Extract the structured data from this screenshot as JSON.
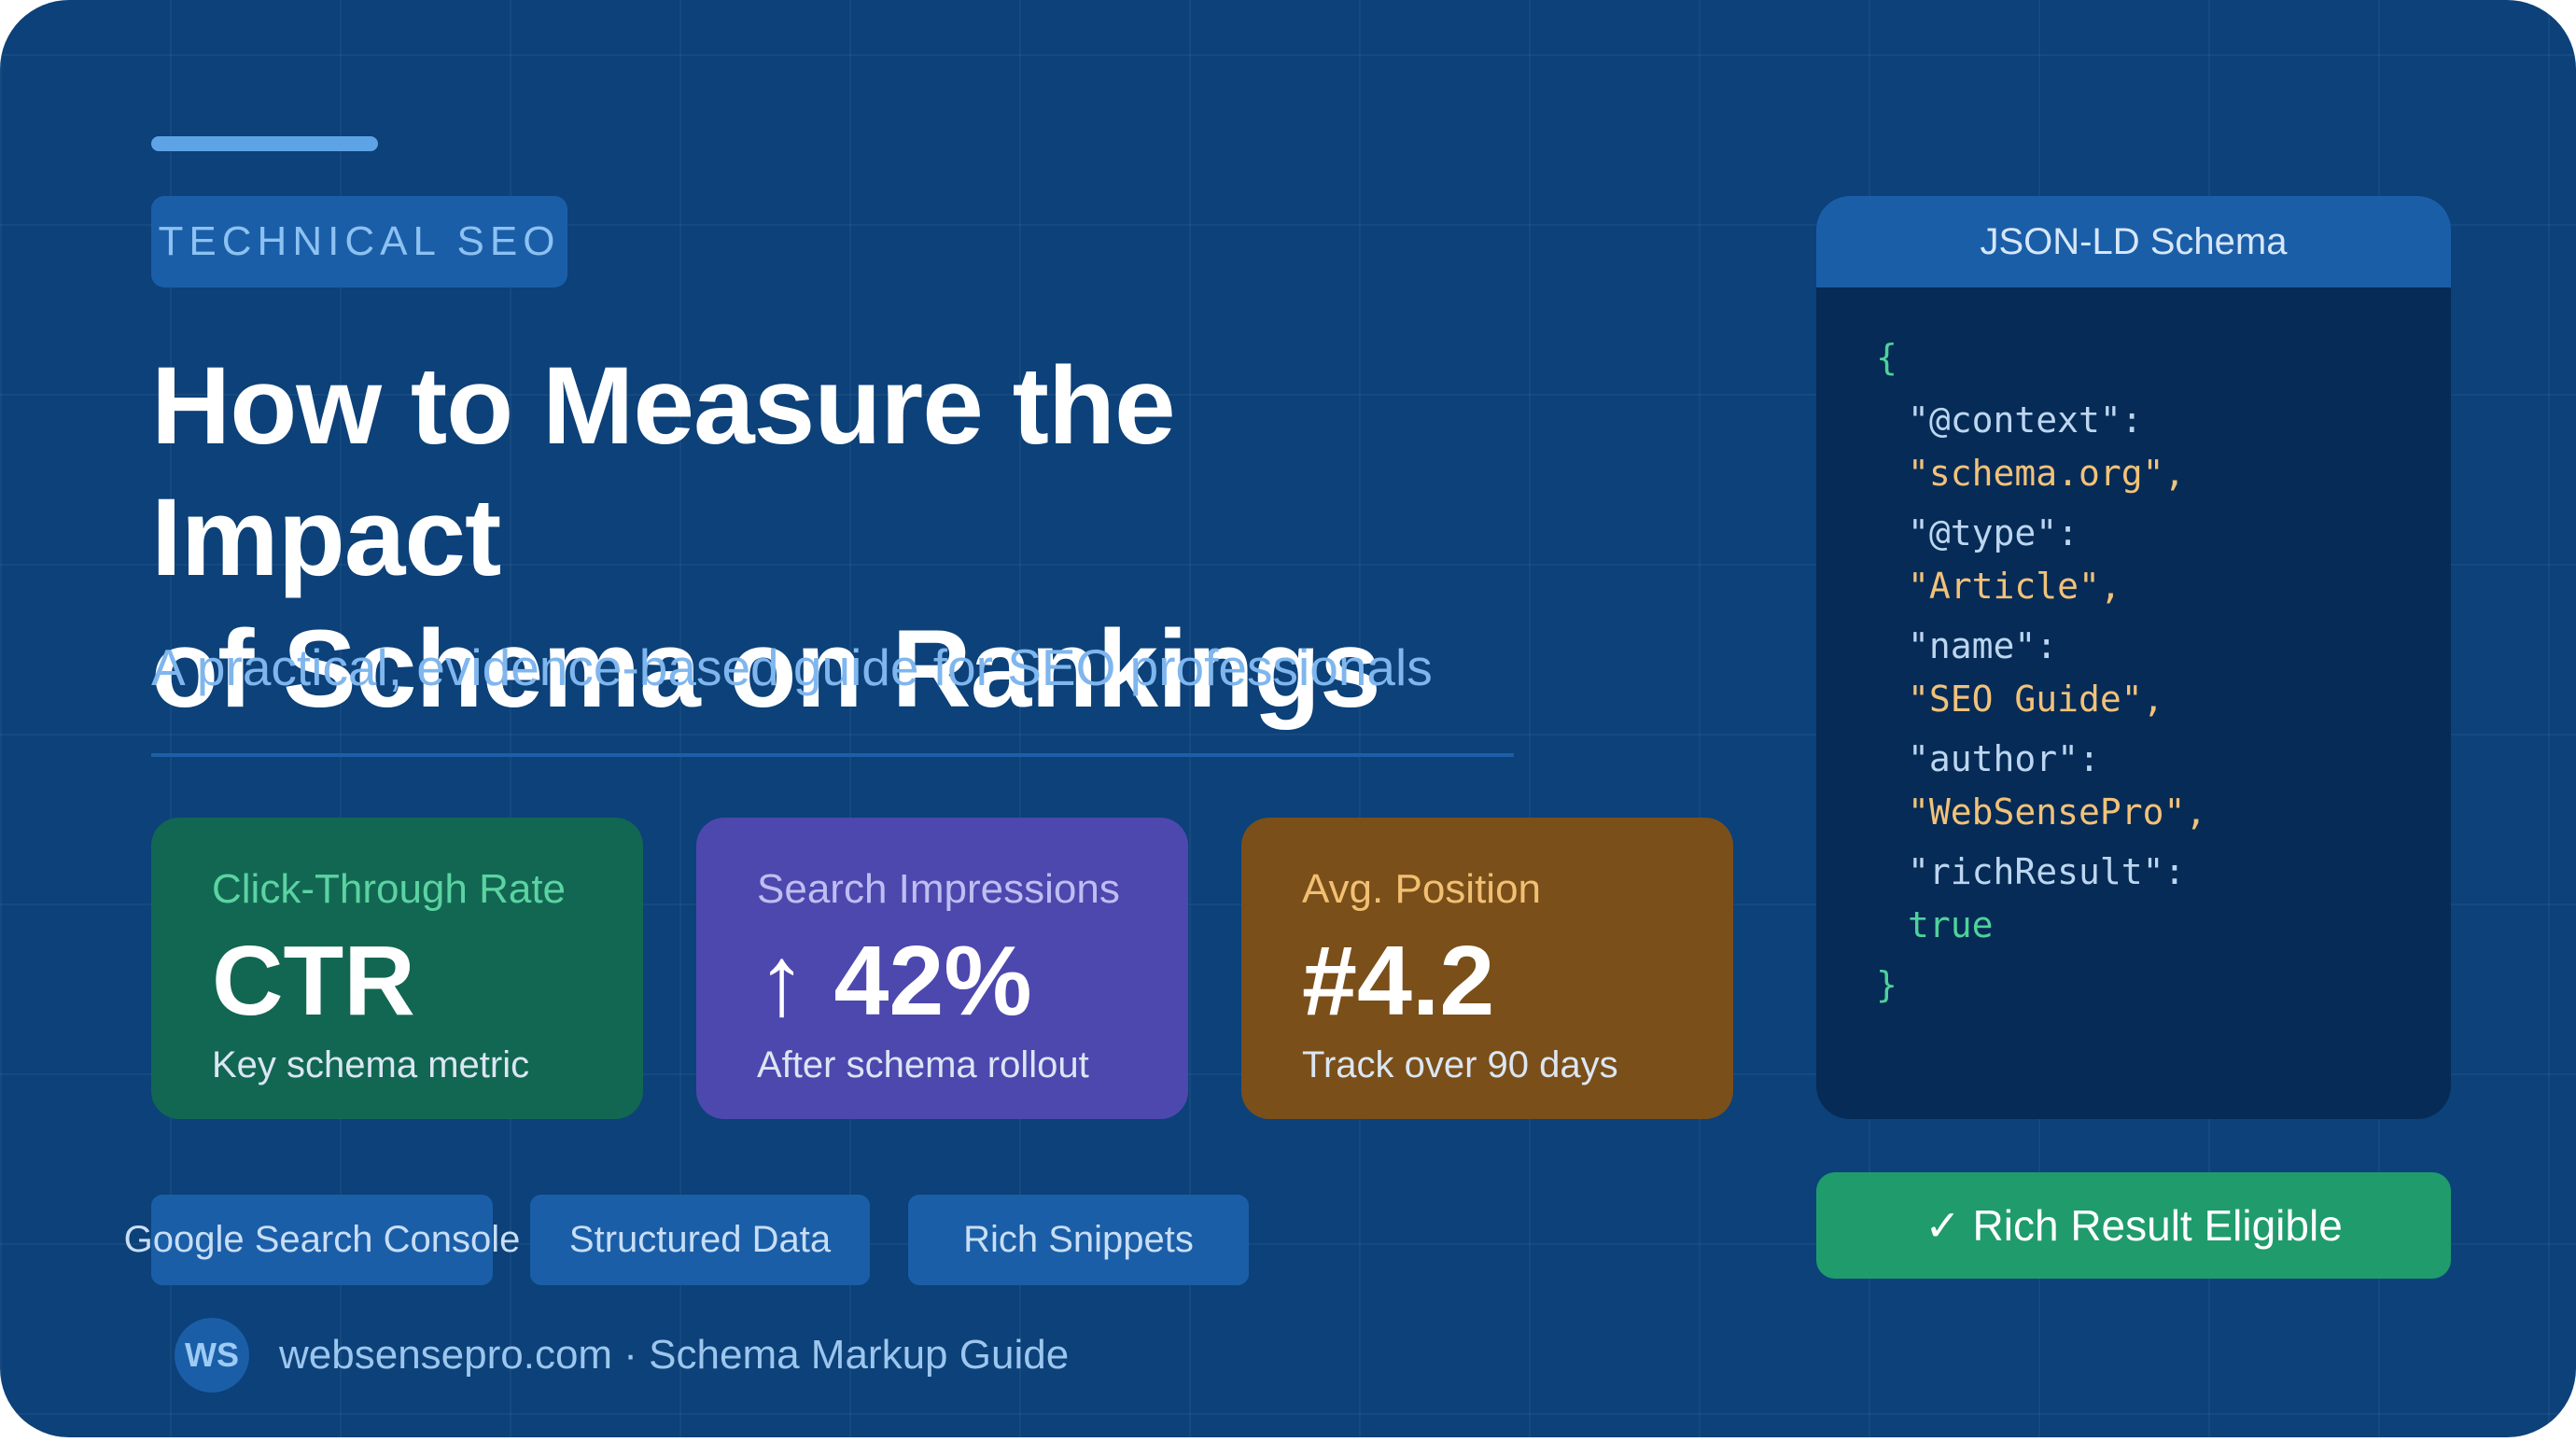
{
  "tag": "TECHNICAL SEO",
  "title": {
    "line1": "How to Measure the Impact",
    "line2": "of Schema on Rankings"
  },
  "subtitle": "A practical, evidence-based guide for SEO professionals",
  "stats": [
    {
      "label": "Click-Through Rate",
      "value": "CTR",
      "note": "Key schema metric",
      "color": "#126752"
    },
    {
      "label": "Search Impressions",
      "value": "↑ 42%",
      "note": "After schema rollout",
      "color": "#4d48ae"
    },
    {
      "label": "Avg. Position",
      "value": "#4.2",
      "note": "Track over 90 days",
      "color": "#7a4f19"
    }
  ],
  "pills": [
    "Google Search Console",
    "Structured Data",
    "Rich Snippets"
  ],
  "footer": {
    "avatar": "WS",
    "text": "websensepro.com · Schema Markup Guide"
  },
  "code_panel": {
    "title": "JSON-LD Schema",
    "lines": [
      "{",
      "\"@context\":",
      "\"schema.org\",",
      "\"@type\":",
      "\"Article\",",
      "\"name\":",
      "\"SEO Guide\",",
      "\"author\":",
      "\"WebSensePro\",",
      "\"richResult\":",
      "true",
      "}"
    ]
  },
  "badge": "✓ Rich Result Eligible",
  "colors": {
    "background": "#0c4179",
    "accent": "#5ea3e6",
    "success": "#1f9b6c"
  }
}
